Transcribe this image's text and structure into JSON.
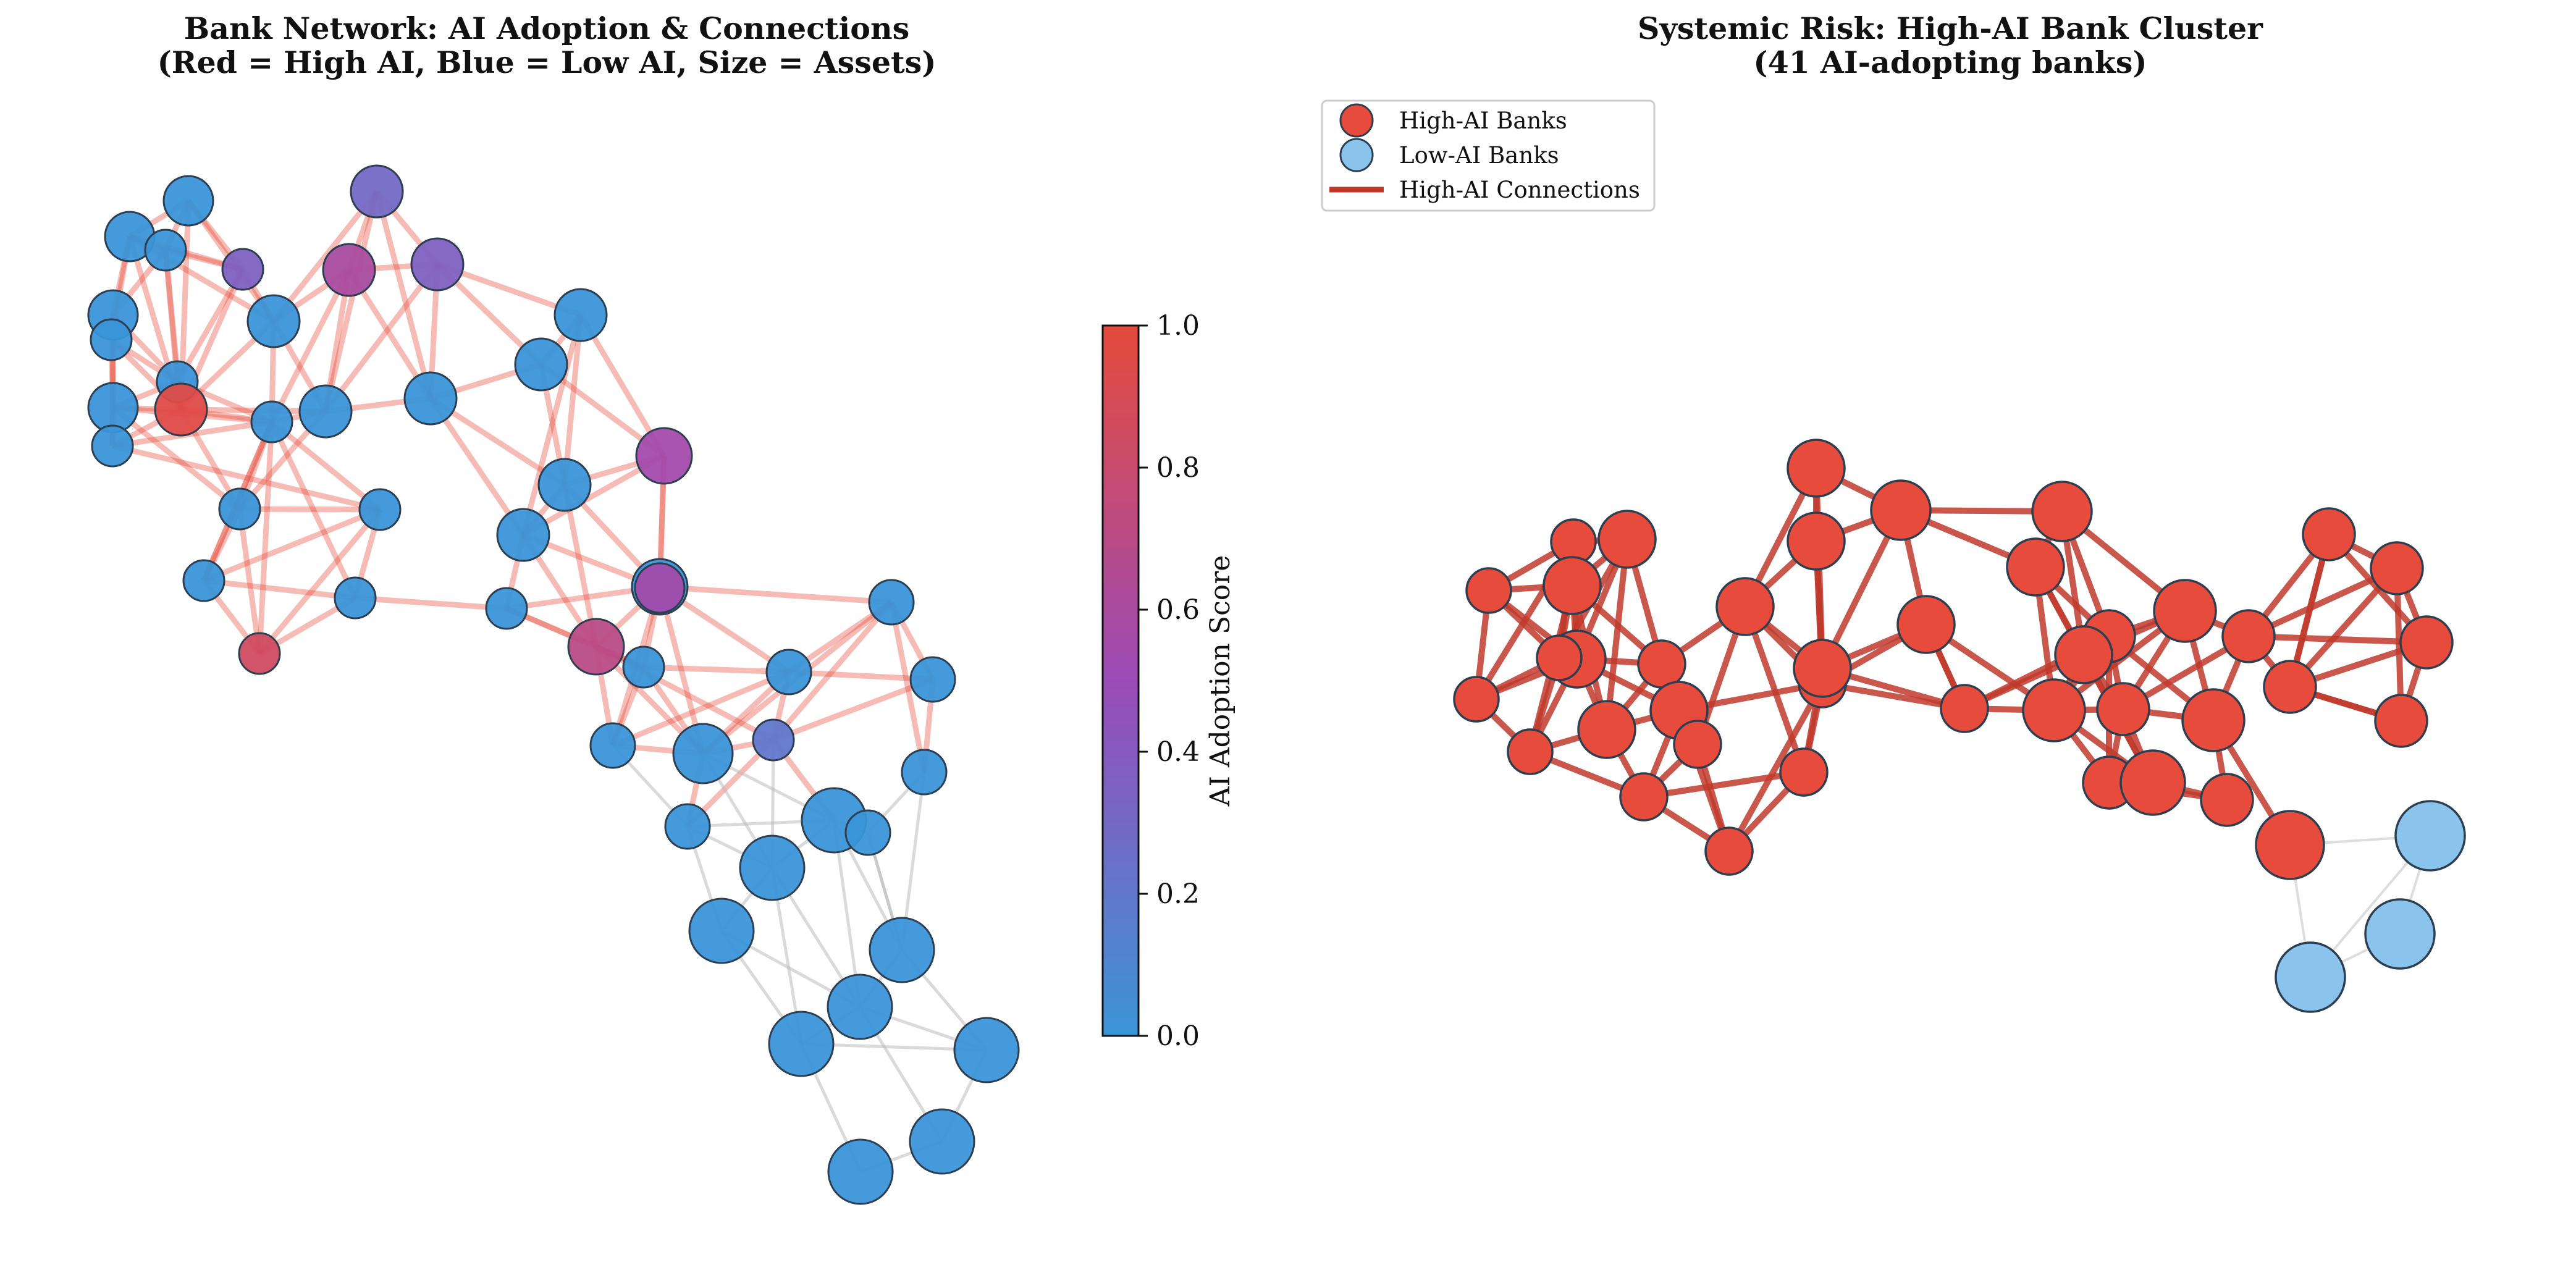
{
  "left_panel": {
    "title_line1": "Bank Network: AI Adoption & Connections",
    "title_line2": "(Red = High AI, Blue = Low AI, Size = Assets)"
  },
  "colorbar": {
    "label": "AI Adoption Score",
    "ticks": [
      "0.0",
      "0.2",
      "0.4",
      "0.6",
      "0.8",
      "1.0"
    ],
    "low_color": "#3a95d8",
    "mid_color": "#9b4bb8",
    "high_color": "#e64b3c"
  },
  "right_panel": {
    "title_line1": "Systemic Risk: High-AI Bank Cluster",
    "title_line2": "(41 AI-adopting banks)",
    "high_ai_count": 41
  },
  "legend": {
    "items": [
      {
        "label": "High-AI Banks",
        "color": "#e64b3c",
        "kind": "marker"
      },
      {
        "label": "Low-AI Banks",
        "color": "#8ac4ec",
        "kind": "marker"
      },
      {
        "label": "High-AI Connections",
        "color": "#c0392b",
        "kind": "line"
      }
    ]
  },
  "colors": {
    "high_edge": "#e74c3c",
    "low_edge": "#bbbbbb",
    "right_high_edge": "#c0392b",
    "node_stroke": "#2c3e50",
    "right_high_node": "#e64b3c",
    "right_low_node": "#8ac4ec"
  }
}
